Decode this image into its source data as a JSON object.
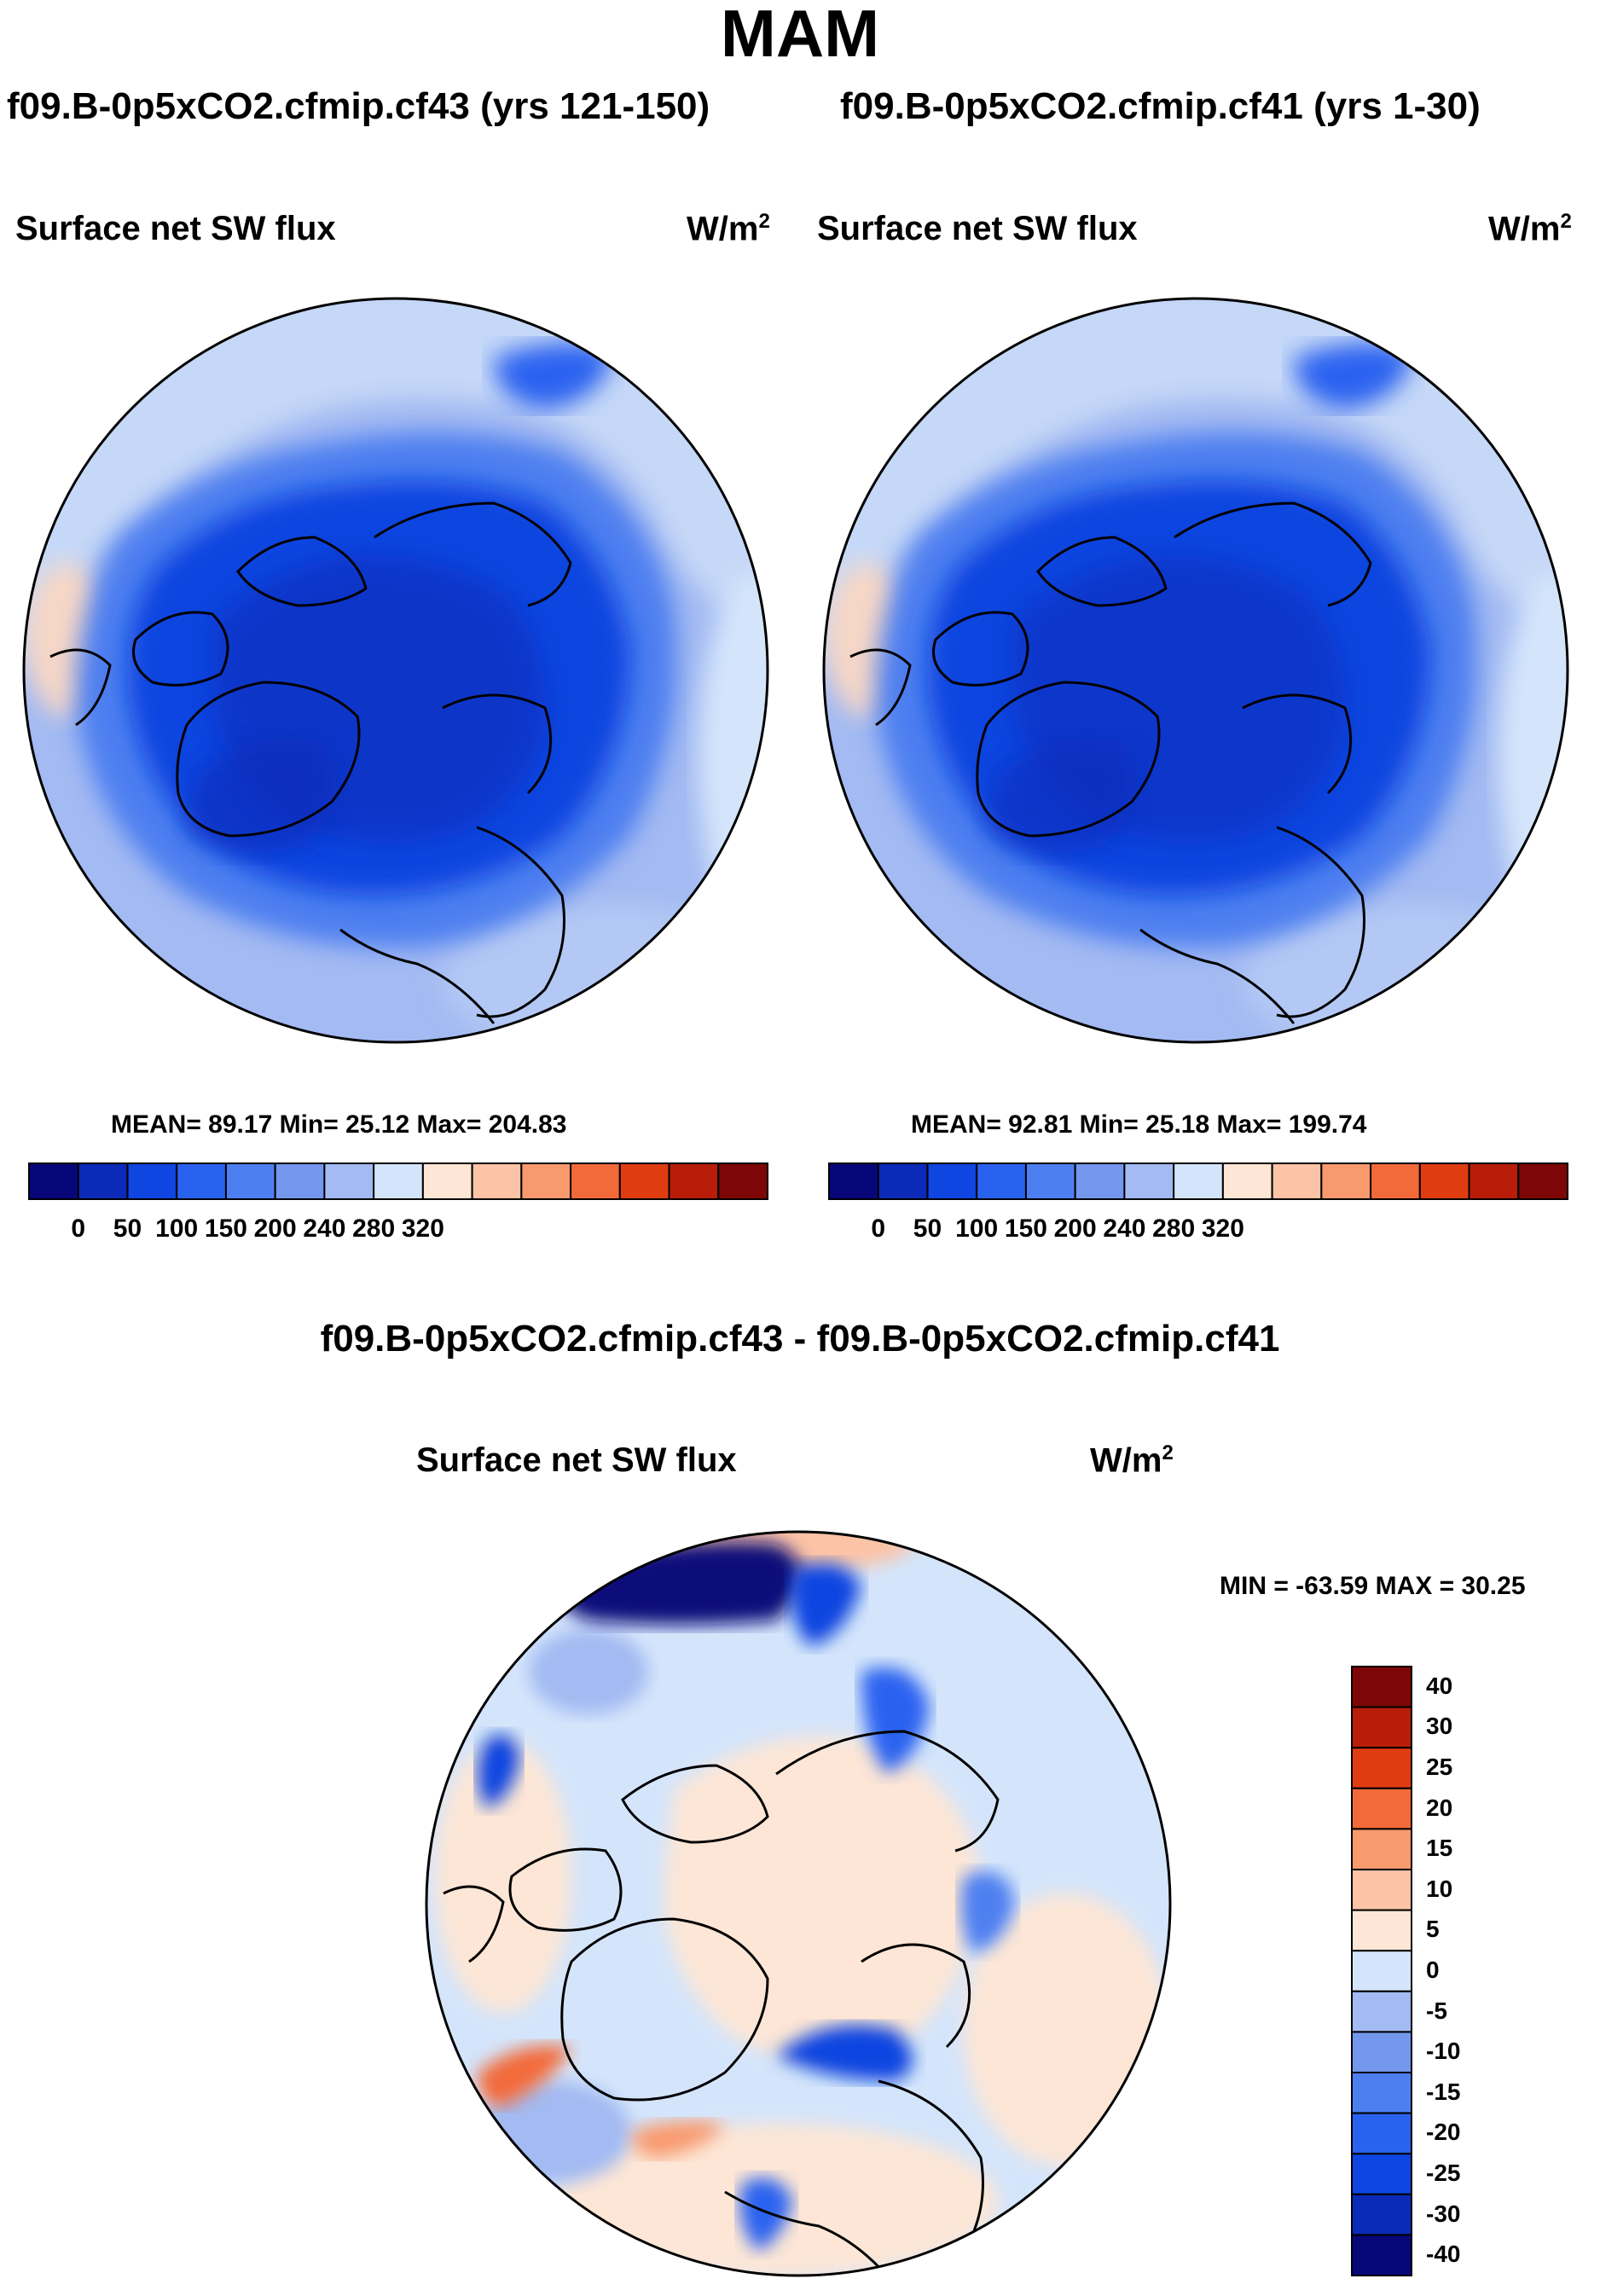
{
  "figure": {
    "season": "MAM",
    "left_case_title": "f09.B-0p5xCO2.cfmip.cf43 (yrs 121-150)",
    "right_case_title": "f09.B-0p5xCO2.cfmip.cf41 (yrs 1-30)",
    "diff_title": "f09.B-0p5xCO2.cfmip.cf43 - f09.B-0p5xCO2.cfmip.cf41"
  },
  "panels": {
    "left": {
      "variable": "Surface net SW flux",
      "units": "W/m",
      "units_sup": "2",
      "stats": "MEAN=  89.17  Min=  25.12  Max= 204.83",
      "mean": 89.17,
      "min": 25.12,
      "max": 204.83
    },
    "right": {
      "variable": "Surface net SW flux",
      "units": "W/m",
      "units_sup": "2",
      "stats": "MEAN=  92.81  Min=  25.18  Max= 199.74",
      "mean": 92.81,
      "min": 25.18,
      "max": 199.74
    },
    "diff": {
      "variable": "Surface net SW flux",
      "units": "W/m",
      "units_sup": "2",
      "stats": "MIN = -63.59 MAX =  30.25",
      "min": -63.59,
      "max": 30.25
    }
  },
  "colorbar_abs": {
    "colors": [
      "#08077a",
      "#0b2ab8",
      "#0f45e0",
      "#2a62f0",
      "#4e7ff0",
      "#7497ee",
      "#a3baf2",
      "#d4e5fb",
      "#fde6d6",
      "#fcc3a6",
      "#f89a6e",
      "#f36a3a",
      "#e03c12",
      "#b81d0a",
      "#7d0606"
    ],
    "labels": [
      "0",
      "50",
      "100",
      "150",
      "200",
      "240",
      "280",
      "320"
    ]
  },
  "colorbar_diff": {
    "colors": [
      "#7d0606",
      "#b81d0a",
      "#e03c12",
      "#f36a3a",
      "#f89a6e",
      "#fcc3a6",
      "#fde6d6",
      "#d4e5fb",
      "#a3baf2",
      "#7497ee",
      "#4e7ff0",
      "#2a62f0",
      "#0f45e0",
      "#0b2ab8",
      "#08077a"
    ],
    "labels": [
      "40",
      "30",
      "25",
      "20",
      "15",
      "10",
      "5",
      "0",
      "-5",
      "-10",
      "-15",
      "-20",
      "-25",
      "-30",
      "-40"
    ]
  }
}
